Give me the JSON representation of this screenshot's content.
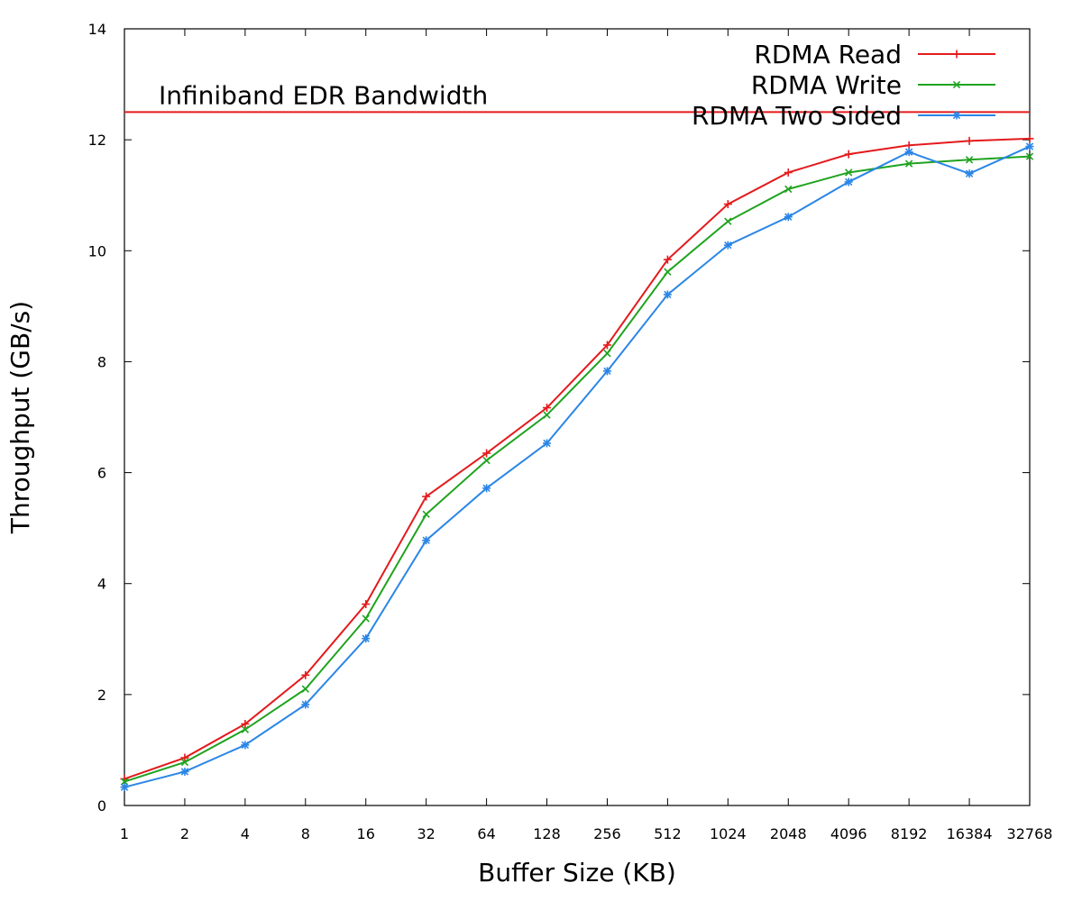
{
  "chart_data": {
    "type": "line",
    "categories": [
      "1",
      "2",
      "4",
      "8",
      "16",
      "32",
      "64",
      "128",
      "256",
      "512",
      "1024",
      "2048",
      "4096",
      "8192",
      "16384",
      "32768"
    ],
    "xlabel": "Buffer Size (KB)",
    "ylabel": "Throughput (GB/s)",
    "ylim": [
      0,
      14
    ],
    "yticks": [
      "0",
      "2",
      "4",
      "6",
      "8",
      "10",
      "12",
      "14"
    ],
    "grid": false,
    "legend_position": "top-right",
    "reference_line": {
      "label": "Infiniband EDR Bandwidth",
      "value": 12.5,
      "color": "#e41a1c"
    },
    "series": [
      {
        "name": "RDMA Read",
        "color": "#e41a1c",
        "marker": "plus",
        "values": [
          0.48,
          0.86,
          1.47,
          2.35,
          3.63,
          5.57,
          6.35,
          7.17,
          8.3,
          9.84,
          10.84,
          11.41,
          11.74,
          11.9,
          11.98,
          12.02
        ]
      },
      {
        "name": "RDMA Write",
        "color": "#1fa31f",
        "marker": "cross",
        "values": [
          0.43,
          0.78,
          1.37,
          2.1,
          3.37,
          5.25,
          6.22,
          7.04,
          8.15,
          9.62,
          10.53,
          11.11,
          11.41,
          11.57,
          11.64,
          11.7
        ]
      },
      {
        "name": "RDMA Two Sided",
        "color": "#2b86e6",
        "marker": "star",
        "values": [
          0.33,
          0.61,
          1.09,
          1.82,
          3.01,
          4.78,
          5.72,
          6.53,
          7.83,
          9.21,
          10.1,
          10.61,
          11.24,
          11.78,
          11.39,
          11.88
        ]
      }
    ]
  }
}
